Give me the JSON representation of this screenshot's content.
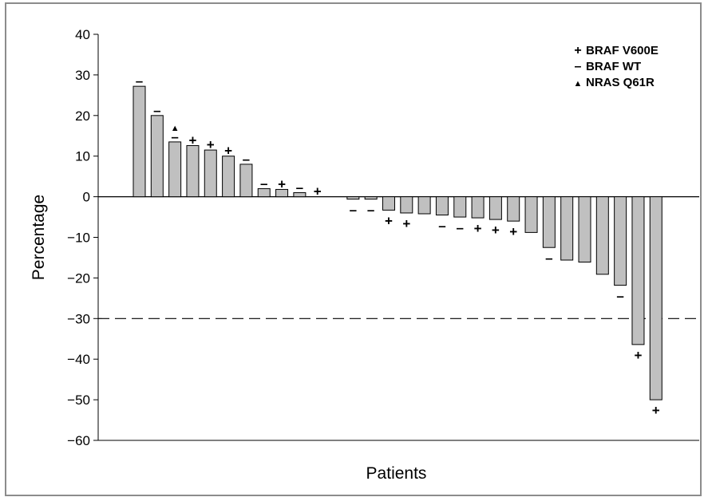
{
  "chart_data": {
    "type": "bar",
    "title": "",
    "xlabel": "Patients",
    "ylabel": "Percentage",
    "ylim": [
      -60,
      40
    ],
    "yticks": [
      40,
      30,
      20,
      10,
      0,
      -10,
      -20,
      -30,
      -40,
      -50,
      -60
    ],
    "reference_line": {
      "value": -30,
      "style": "dashed"
    },
    "grid": false,
    "legend_position": "top-right",
    "bar_color": "#c0c0c0",
    "legend": [
      {
        "symbol": "+",
        "label": "BRAF V600E"
      },
      {
        "symbol": "–",
        "label": "BRAF WT"
      },
      {
        "symbol": "▲",
        "label": "NRAS Q61R"
      }
    ],
    "values": [
      27.2,
      20.0,
      13.5,
      12.6,
      11.5,
      10.0,
      8.0,
      2.0,
      1.8,
      1.0,
      0.0,
      0.0,
      -0.6,
      -0.6,
      -3.3,
      -4.0,
      -4.2,
      -4.5,
      -5.0,
      -5.2,
      -5.6,
      -6.0,
      -8.8,
      -12.5,
      -15.6,
      -16.1,
      -19.1,
      -21.8,
      -36.4,
      -50.0
    ],
    "markers": [
      "–",
      "–",
      "▲–",
      "+",
      "+",
      "+",
      "–",
      "–",
      "+",
      "–",
      "+",
      "",
      "–",
      "–",
      "+",
      "+",
      "",
      "–",
      "–",
      "+",
      "+",
      "+",
      "",
      "–",
      "",
      "",
      "",
      "–",
      "+",
      "+"
    ]
  }
}
